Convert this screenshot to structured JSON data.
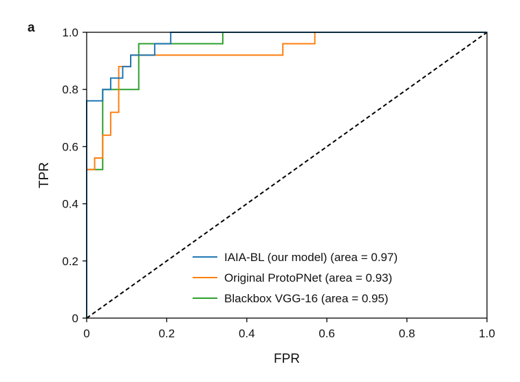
{
  "chart_data": {
    "type": "line",
    "panel_label": "a",
    "xlabel": "FPR",
    "ylabel": "TPR",
    "xlim": [
      0,
      1
    ],
    "ylim": [
      0,
      1
    ],
    "x_ticks": [
      "0",
      "0.2",
      "0.4",
      "0.6",
      "0.8",
      "1.0"
    ],
    "y_ticks": [
      "0",
      "0.2",
      "0.4",
      "0.6",
      "0.8",
      "1.0"
    ],
    "grid": false,
    "legend_position": "bottom-right",
    "series": [
      {
        "name": "IAIA-BL (our model) (area = 0.97)",
        "color": "#1f77b4",
        "x": [
          0,
          0,
          0.04,
          0.04,
          0.06,
          0.06,
          0.09,
          0.09,
          0.11,
          0.11,
          0.17,
          0.17,
          0.21,
          0.21,
          1.0
        ],
        "y": [
          0,
          0.76,
          0.76,
          0.8,
          0.8,
          0.84,
          0.84,
          0.88,
          0.88,
          0.92,
          0.92,
          0.96,
          0.96,
          1.0,
          1.0
        ]
      },
      {
        "name": "Original ProtoPNet (area = 0.93)",
        "color": "#ff7f0e",
        "x": [
          0,
          0,
          0.02,
          0.02,
          0.04,
          0.04,
          0.06,
          0.06,
          0.08,
          0.08,
          0.11,
          0.11,
          0.13,
          0.13,
          0.49,
          0.49,
          0.57,
          0.57,
          1.0
        ],
        "y": [
          0,
          0.52,
          0.52,
          0.56,
          0.56,
          0.64,
          0.64,
          0.72,
          0.72,
          0.88,
          0.88,
          0.92,
          0.92,
          0.92,
          0.92,
          0.96,
          0.96,
          1.0,
          1.0
        ]
      },
      {
        "name": "Blackbox VGG-16 (area = 0.95)",
        "color": "#2ca02c",
        "x": [
          0,
          0,
          0.04,
          0.04,
          0.13,
          0.13,
          0.34,
          0.34,
          1.0
        ],
        "y": [
          0,
          0.52,
          0.52,
          0.8,
          0.8,
          0.96,
          0.96,
          1.0,
          1.0
        ]
      }
    ],
    "diagonal": {
      "color": "#000000",
      "style": "dashed",
      "x": [
        0,
        1
      ],
      "y": [
        0,
        1
      ]
    }
  }
}
